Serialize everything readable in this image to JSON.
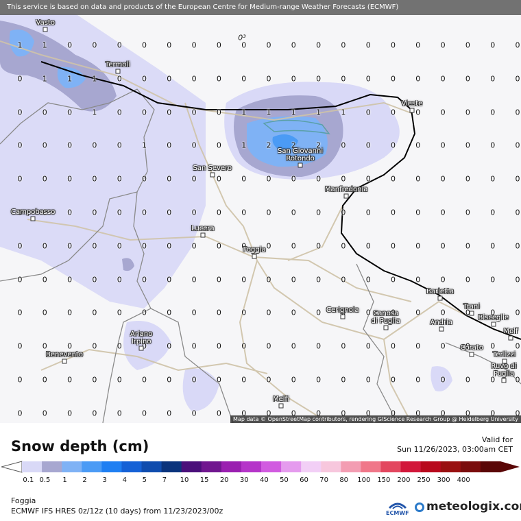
{
  "header": {
    "notice": "This service is based on data and products of the European Centre for Medium-range Weather Forecasts (ECMWF)"
  },
  "map": {
    "attribution": "Map data © OpenStreetMap contributors, rendering GIScience Research Group @ Heidelberg University",
    "stray_label": "0³",
    "cities": [
      {
        "name": "Vasto",
        "l1": "Vasto",
        "l2": ""
      },
      {
        "name": "Termoli",
        "l1": "Termoli",
        "l2": ""
      },
      {
        "name": "Vieste",
        "l1": "Vieste",
        "l2": ""
      },
      {
        "name": "San Severo",
        "l1": "San Severo",
        "l2": ""
      },
      {
        "name": "San Giovanni Rotondo",
        "l1": "San Giovanni",
        "l2": "Rotondo"
      },
      {
        "name": "Manfredonia",
        "l1": "Manfredonia",
        "l2": ""
      },
      {
        "name": "Campobasso",
        "l1": "Campobasso",
        "l2": ""
      },
      {
        "name": "Lucera",
        "l1": "Lucera",
        "l2": ""
      },
      {
        "name": "Foggia",
        "l1": "Foggia",
        "l2": ""
      },
      {
        "name": "Barletta",
        "l1": "Barletta",
        "l2": ""
      },
      {
        "name": "Trani",
        "l1": "Trani",
        "l2": ""
      },
      {
        "name": "Cerignola",
        "l1": "Cerignola",
        "l2": ""
      },
      {
        "name": "Canosa di Puglia",
        "l1": "Canosa",
        "l2": "di Puglia"
      },
      {
        "name": "Bisceglie",
        "l1": "Bisceglie",
        "l2": ""
      },
      {
        "name": "Andria",
        "l1": "Andria",
        "l2": ""
      },
      {
        "name": "Molfetta",
        "l1": "Molf",
        "l2": ""
      },
      {
        "name": "Ariano Irpino",
        "l1": "Ariano",
        "l2": "Irpino"
      },
      {
        "name": "Corato",
        "l1": "Corato",
        "l2": ""
      },
      {
        "name": "Benevento",
        "l1": "Benevento",
        "l2": ""
      },
      {
        "name": "Terlizzi",
        "l1": "Terlizzi",
        "l2": ""
      },
      {
        "name": "Ruvo di Puglia",
        "l1": "Ruvo di",
        "l2": "Puglia"
      },
      {
        "name": "Melfi",
        "l1": "Melfi",
        "l2": ""
      }
    ],
    "grid_values": [
      [
        "1",
        "1",
        "0",
        "0",
        "0",
        "0",
        "0",
        "0",
        "0",
        "0",
        "0",
        "0",
        "0",
        "0",
        "0",
        "0",
        "0",
        "0",
        "0",
        "0",
        "0"
      ],
      [
        "0",
        "1",
        "1",
        "1",
        "0",
        "0",
        "0",
        "0",
        "0",
        "0",
        "0",
        "0",
        "0",
        "0",
        "0",
        "0",
        "0",
        "0",
        "0",
        "0",
        "0"
      ],
      [
        "0",
        "0",
        "0",
        "1",
        "0",
        "0",
        "0",
        "0",
        "0",
        "1",
        "1",
        "1",
        "1",
        "1",
        "0",
        "0",
        "0",
        "0",
        "0",
        "0",
        "0"
      ],
      [
        "0",
        "0",
        "0",
        "0",
        "0",
        "1",
        "0",
        "0",
        "0",
        "1",
        "2",
        "2",
        "2",
        "0",
        "0",
        "0",
        "0",
        "0",
        "0",
        "0",
        "0"
      ],
      [
        "0",
        "0",
        "0",
        "0",
        "0",
        "0",
        "0",
        "0",
        "0",
        "0",
        "0",
        "0",
        "0",
        "0",
        "0",
        "0",
        "0",
        "0",
        "0",
        "0",
        "0"
      ],
      [
        "0",
        "0",
        "0",
        "0",
        "0",
        "0",
        "0",
        "0",
        "0",
        "0",
        "0",
        "0",
        "0",
        "0",
        "0",
        "0",
        "0",
        "0",
        "0",
        "0",
        "0"
      ],
      [
        "0",
        "0",
        "0",
        "0",
        "0",
        "0",
        "0",
        "0",
        "0",
        "0",
        "0",
        "0",
        "0",
        "0",
        "0",
        "0",
        "0",
        "0",
        "0",
        "0",
        "0"
      ],
      [
        "0",
        "0",
        "0",
        "0",
        "0",
        "0",
        "0",
        "0",
        "0",
        "0",
        "0",
        "0",
        "0",
        "0",
        "0",
        "0",
        "0",
        "0",
        "0",
        "0",
        "0"
      ],
      [
        "0",
        "0",
        "0",
        "0",
        "0",
        "0",
        "0",
        "0",
        "0",
        "0",
        "0",
        "0",
        "0",
        "0",
        "0",
        "0",
        "0",
        "0",
        "0",
        "0",
        "0"
      ],
      [
        "0",
        "0",
        "0",
        "0",
        "0",
        "0",
        "0",
        "0",
        "0",
        "0",
        "0",
        "0",
        "0",
        "0",
        "0",
        "0",
        "0",
        "0",
        "0",
        "0",
        "0"
      ],
      [
        "0",
        "0",
        "0",
        "0",
        "0",
        "0",
        "0",
        "0",
        "0",
        "0",
        "0",
        "0",
        "0",
        "0",
        "0",
        "0",
        "0",
        "0",
        "0",
        "0",
        "0"
      ],
      [
        "0",
        "0",
        "0",
        "0",
        "0",
        "0",
        "0",
        "0",
        "0",
        "0",
        "0",
        "0",
        "0",
        "0",
        "0",
        "0",
        "0",
        "0",
        "0",
        "0",
        "0"
      ],
      [
        "0",
        "0",
        "0",
        "0",
        "0",
        "0",
        "0",
        "0",
        "0",
        "0",
        "0",
        "0",
        "0",
        "0",
        "0",
        "0",
        "0",
        "0",
        "0",
        "0",
        "0"
      ]
    ]
  },
  "legend": {
    "title": "Snow depth (cm)",
    "valid_for": "Valid for",
    "valid_date": "Sun 11/26/2023, 03:00am CET",
    "ticks": [
      "0.1",
      "0.5",
      "1",
      "2",
      "3",
      "4",
      "5",
      "7",
      "10",
      "15",
      "20",
      "30",
      "40",
      "50",
      "60",
      "70",
      "80",
      "100",
      "150",
      "200",
      "250",
      "300",
      "400"
    ],
    "colors": [
      "#d9d9f7",
      "#a7a7d0",
      "#7fb2f5",
      "#4b9bf5",
      "#1f7ff2",
      "#1561d6",
      "#0f4cae",
      "#0a337c",
      "#4a0f7a",
      "#70168f",
      "#9a1fb0",
      "#b534c9",
      "#d15be0",
      "#e59bee",
      "#f2cff6",
      "#f7c7dd",
      "#f39db2",
      "#f07789",
      "#e3475f",
      "#d2173a",
      "#b8091c",
      "#991010",
      "#7a0c0c",
      "#5a0707"
    ],
    "location": "Foggia",
    "model": "ECMWF IFS HRES 0z/12z (10 days) from  11/23/2023/00z",
    "brand": "meteologix.com",
    "ecmwf_label": "ECMWF"
  }
}
